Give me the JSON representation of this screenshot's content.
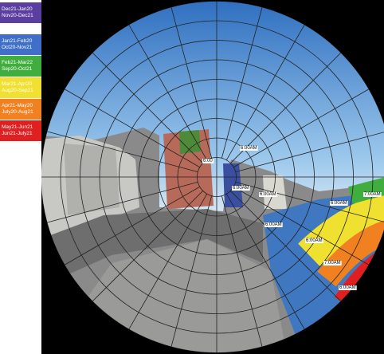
{
  "legend": {
    "items": [
      {
        "lines": [
          "Dec21-Jan20",
          "Nov20-Dec21"
        ],
        "color": "#5b3fa0"
      },
      {
        "lines": [
          "Jan21-Feb20",
          "Oct20-Nov21"
        ],
        "color": "#3f6fc8"
      },
      {
        "lines": [
          "Feb21-Mar22",
          "Sep20-Oct21"
        ],
        "color": "#3fae3f"
      },
      {
        "lines": [
          "Mar21-Apr20",
          "Aug20-Sep21"
        ],
        "color": "#f0e030"
      },
      {
        "lines": [
          "Apr21-May20",
          "July20-Aug21"
        ],
        "color": "#f08020"
      },
      {
        "lines": [
          "May21-Jun21",
          "Jun21-July21"
        ],
        "color": "#e02020"
      }
    ]
  },
  "time_labels": [
    "6:00",
    "6:00AM",
    "6:00AM",
    "6:00AM",
    "6:00AM",
    "6:00AM",
    "7:00AM",
    "6:00AM",
    "6:00AM",
    "7:00AM",
    "6:00AM"
  ]
}
